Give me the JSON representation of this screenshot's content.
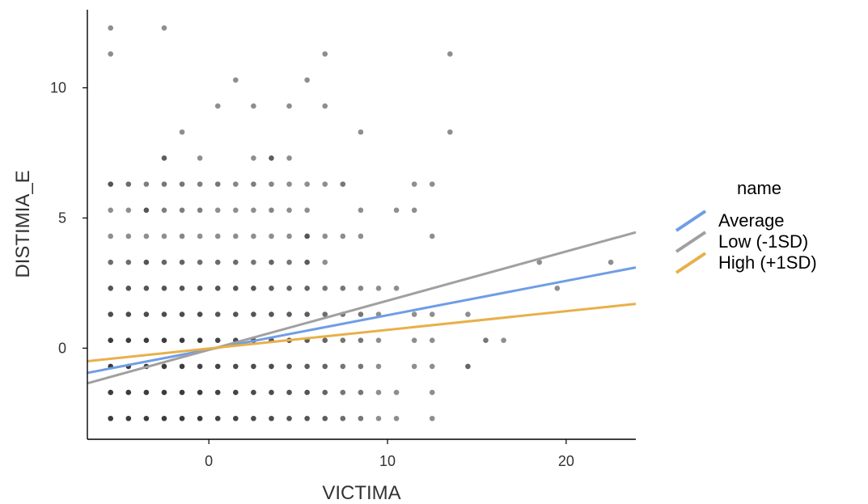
{
  "chart_data": {
    "type": "scatter",
    "xlabel": "VICTIMA",
    "ylabel": "DISTIMIA_E",
    "xlim": [
      -6.8,
      23.9
    ],
    "ylim": [
      -3.5,
      13
    ],
    "x_ticks": [
      0,
      10,
      20
    ],
    "y_ticks": [
      0,
      5,
      10
    ],
    "grid": false,
    "legend": {
      "title": "name",
      "position": "right",
      "entries": [
        {
          "label": "Average",
          "color": "#6f9de6"
        },
        {
          "label": "Low (-1SD)",
          "color": "#a0a0a0"
        },
        {
          "label": "High (+1SD)",
          "color": "#e8b04a"
        }
      ]
    },
    "lines": [
      {
        "name": "Average",
        "color": "#6f9de6",
        "x": [
          -6.8,
          23.9
        ],
        "y": [
          -0.95,
          3.1
        ]
      },
      {
        "name": "Low (-1SD)",
        "color": "#a0a0a0",
        "x": [
          -6.8,
          23.9
        ],
        "y": [
          -1.35,
          4.45
        ]
      },
      {
        "name": "High (+1SD)",
        "color": "#e8b04a",
        "x": [
          -6.8,
          23.9
        ],
        "y": [
          -0.5,
          1.7
        ]
      }
    ],
    "points": [
      {
        "x": -5.5,
        "y": 12.3,
        "d": 0.35
      },
      {
        "x": -2.5,
        "y": 12.3,
        "d": 0.35
      },
      {
        "x": -5.5,
        "y": 11.3,
        "d": 0.35
      },
      {
        "x": 6.5,
        "y": 11.3,
        "d": 0.35
      },
      {
        "x": 13.5,
        "y": 11.3,
        "d": 0.35
      },
      {
        "x": 1.5,
        "y": 10.3,
        "d": 0.35
      },
      {
        "x": 5.5,
        "y": 10.3,
        "d": 0.35
      },
      {
        "x": 0.5,
        "y": 9.3,
        "d": 0.35
      },
      {
        "x": 2.5,
        "y": 9.3,
        "d": 0.35
      },
      {
        "x": 4.5,
        "y": 9.3,
        "d": 0.35
      },
      {
        "x": 6.5,
        "y": 9.3,
        "d": 0.35
      },
      {
        "x": -1.5,
        "y": 8.3,
        "d": 0.35
      },
      {
        "x": 8.5,
        "y": 8.3,
        "d": 0.35
      },
      {
        "x": 13.5,
        "y": 8.3,
        "d": 0.35
      },
      {
        "x": -2.5,
        "y": 7.3,
        "d": 0.65
      },
      {
        "x": -0.5,
        "y": 7.3,
        "d": 0.35
      },
      {
        "x": 2.5,
        "y": 7.3,
        "d": 0.35
      },
      {
        "x": 3.5,
        "y": 7.3,
        "d": 0.65
      },
      {
        "x": 4.5,
        "y": 7.3,
        "d": 0.35
      },
      {
        "x": 6.5,
        "y": 6.3,
        "d": 0.35
      },
      {
        "x": 7.5,
        "y": 6.3,
        "d": 0.5
      },
      {
        "x": 11.5,
        "y": 6.3,
        "d": 0.35
      },
      {
        "x": 12.5,
        "y": 6.3,
        "d": 0.35
      },
      {
        "x": 8.5,
        "y": 5.3,
        "d": 0.35
      },
      {
        "x": 10.5,
        "y": 5.3,
        "d": 0.35
      },
      {
        "x": 11.5,
        "y": 5.3,
        "d": 0.35
      },
      {
        "x": 5.5,
        "y": 4.3,
        "d": 0.7
      },
      {
        "x": 6.5,
        "y": 4.3,
        "d": 0.35
      },
      {
        "x": 7.5,
        "y": 4.3,
        "d": 0.35
      },
      {
        "x": 8.5,
        "y": 4.3,
        "d": 0.35
      },
      {
        "x": 12.5,
        "y": 4.3,
        "d": 0.35
      },
      {
        "x": 6.5,
        "y": 3.3,
        "d": 0.35
      },
      {
        "x": 18.5,
        "y": 3.3,
        "d": 0.35
      },
      {
        "x": 22.5,
        "y": 3.3,
        "d": 0.35
      },
      {
        "x": 7.5,
        "y": 2.3,
        "d": 0.5
      },
      {
        "x": 8.5,
        "y": 2.3,
        "d": 0.4
      },
      {
        "x": 9.5,
        "y": 2.3,
        "d": 0.35
      },
      {
        "x": 10.5,
        "y": 2.3,
        "d": 0.35
      },
      {
        "x": 19.5,
        "y": 2.3,
        "d": 0.35
      },
      {
        "x": 7.5,
        "y": 1.3,
        "d": 0.5
      },
      {
        "x": 8.5,
        "y": 1.3,
        "d": 0.5
      },
      {
        "x": 9.5,
        "y": 1.3,
        "d": 0.35
      },
      {
        "x": 11.5,
        "y": 1.3,
        "d": 0.35
      },
      {
        "x": 12.5,
        "y": 1.3,
        "d": 0.35
      },
      {
        "x": 14.5,
        "y": 1.3,
        "d": 0.35
      },
      {
        "x": 7.5,
        "y": 0.3,
        "d": 0.5
      },
      {
        "x": 8.5,
        "y": 0.3,
        "d": 0.5
      },
      {
        "x": 9.5,
        "y": 0.3,
        "d": 0.35
      },
      {
        "x": 11.5,
        "y": 0.3,
        "d": 0.35
      },
      {
        "x": 12.5,
        "y": 0.3,
        "d": 0.35
      },
      {
        "x": 15.5,
        "y": 0.3,
        "d": 0.5
      },
      {
        "x": 16.5,
        "y": 0.3,
        "d": 0.35
      },
      {
        "x": 7.5,
        "y": -0.7,
        "d": 0.5
      },
      {
        "x": 8.5,
        "y": -0.7,
        "d": 0.5
      },
      {
        "x": 9.5,
        "y": -0.7,
        "d": 0.35
      },
      {
        "x": 11.5,
        "y": -0.7,
        "d": 0.35
      },
      {
        "x": 12.5,
        "y": -0.7,
        "d": 0.35
      },
      {
        "x": 14.5,
        "y": -0.7,
        "d": 0.6
      },
      {
        "x": 7.5,
        "y": -1.7,
        "d": 0.5
      },
      {
        "x": 8.5,
        "y": -1.7,
        "d": 0.5
      },
      {
        "x": 9.5,
        "y": -1.7,
        "d": 0.35
      },
      {
        "x": 10.5,
        "y": -1.7,
        "d": 0.35
      },
      {
        "x": 12.5,
        "y": -1.7,
        "d": 0.35
      },
      {
        "x": 7.5,
        "y": -2.7,
        "d": 0.55
      },
      {
        "x": 8.5,
        "y": -2.7,
        "d": 0.5
      },
      {
        "x": 9.5,
        "y": -2.7,
        "d": 0.35
      },
      {
        "x": 10.5,
        "y": -2.7,
        "d": 0.35
      },
      {
        "x": 12.5,
        "y": -2.7,
        "d": 0.35
      }
    ],
    "grid_points": {
      "x": [
        -5.5,
        -4.5,
        -3.5,
        -2.5,
        -1.5,
        -0.5,
        0.5,
        1.5,
        2.5,
        3.5,
        4.5,
        5.5,
        6.5
      ],
      "rows": [
        {
          "y": 6.3,
          "d": [
            0.7,
            0.55,
            0.45,
            0.5,
            0.5,
            0.45,
            0.5,
            0.4,
            0.45,
            0.4,
            0.35,
            0.35,
            0
          ]
        },
        {
          "y": 5.3,
          "d": [
            0.35,
            0.35,
            0.7,
            0.45,
            0.45,
            0.45,
            0.35,
            0.35,
            0.35,
            0.4,
            0.35,
            0.35,
            0
          ]
        },
        {
          "y": 4.3,
          "d": [
            0.35,
            0.35,
            0.35,
            0.35,
            0.4,
            0.35,
            0.35,
            0.35,
            0.35,
            0.35,
            0.35,
            0,
            0
          ]
        },
        {
          "y": 3.3,
          "d": [
            0.55,
            0.55,
            0.7,
            0.6,
            0.6,
            0.55,
            0.55,
            0.55,
            0.5,
            0.6,
            0.5,
            0.65,
            0
          ]
        },
        {
          "y": 2.3,
          "d": [
            0.7,
            0.7,
            0.7,
            0.7,
            0.7,
            0.7,
            0.7,
            0.7,
            0.7,
            0.65,
            0.6,
            0.6,
            0.5
          ]
        },
        {
          "y": 1.3,
          "d": [
            0.75,
            0.75,
            0.75,
            0.75,
            0.75,
            0.75,
            0.7,
            0.7,
            0.7,
            0.7,
            0.65,
            0.65,
            0.55
          ]
        },
        {
          "y": 0.3,
          "d": [
            0.85,
            0.85,
            0.85,
            0.85,
            0.85,
            0.85,
            0.8,
            0.75,
            0.75,
            0.7,
            0.7,
            0.65,
            0.6
          ]
        },
        {
          "y": -0.7,
          "d": [
            0.85,
            0.85,
            0.85,
            0.85,
            0.85,
            0.8,
            0.8,
            0.75,
            0.75,
            0.75,
            0.7,
            0.65,
            0.6
          ]
        },
        {
          "y": -1.7,
          "d": [
            0.85,
            0.85,
            0.85,
            0.85,
            0.85,
            0.85,
            0.8,
            0.8,
            0.75,
            0.75,
            0.7,
            0.7,
            0.6
          ]
        },
        {
          "y": -2.7,
          "d": [
            0.85,
            0.85,
            0.85,
            0.85,
            0.85,
            0.85,
            0.8,
            0.8,
            0.75,
            0.75,
            0.7,
            0.7,
            0.65
          ]
        }
      ]
    }
  }
}
